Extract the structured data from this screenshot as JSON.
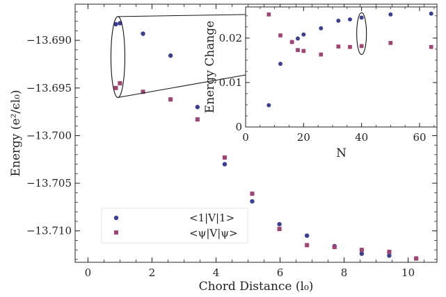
{
  "chart_data": [
    {
      "type": "scatter",
      "xlabel": "Chord Distance (l₀)",
      "ylabel": "Energy (e²/ϵl₀)",
      "xlim": [
        -0.4,
        10.9
      ],
      "ylim": [
        -13.7133,
        -13.6862
      ],
      "xticks": [
        0,
        2,
        4,
        6,
        8,
        10
      ],
      "xtick_labels": [
        "0",
        "2",
        "4",
        "6",
        "8",
        "10"
      ],
      "yticks": [
        -13.71,
        -13.705,
        -13.7,
        -13.695,
        -13.69
      ],
      "ytick_labels": [
        "−13.710",
        "−13.705",
        "−13.700",
        "−13.695",
        "−13.690"
      ],
      "legend_position": "bottom-left",
      "series": [
        {
          "name": "<1|V|1>",
          "color": "#3b3f94",
          "marker": "circle",
          "x": [
            0.87,
            1.0,
            1.72,
            2.58,
            3.42,
            4.27,
            5.13,
            5.98,
            6.84,
            7.7,
            8.55,
            9.41,
            10.25
          ],
          "y": [
            -13.6883,
            -13.6882,
            -13.6893,
            -13.6916,
            -13.697,
            -13.703,
            -13.7069,
            -13.7093,
            -13.7105,
            -13.7116,
            -13.7124,
            -13.7126,
            -13.7129
          ]
        },
        {
          "name": "<ψ|V|ψ>",
          "color": "#a04474",
          "marker": "square",
          "x": [
            0.87,
            1.0,
            1.72,
            2.58,
            3.42,
            4.27,
            5.13,
            5.98,
            6.84,
            7.7,
            8.55,
            9.41,
            10.25
          ],
          "y": [
            -13.695,
            -13.6945,
            -13.6954,
            -13.6962,
            -13.6983,
            -13.7023,
            -13.7061,
            -13.7098,
            -13.7115,
            -13.7117,
            -13.712,
            -13.7122,
            -13.7129
          ]
        }
      ]
    },
    {
      "type": "scatter",
      "xlabel": "N",
      "ylabel": "Energy Change",
      "xlim": [
        0,
        66
      ],
      "ylim": [
        0,
        0.027
      ],
      "xticks": [
        0,
        20,
        40,
        60
      ],
      "xtick_labels": [
        "0",
        "20",
        "40",
        "60"
      ],
      "yticks": [
        0,
        0.01,
        0.02
      ],
      "ytick_labels": [
        "0",
        "0.01",
        "0.02"
      ],
      "series": [
        {
          "color": "#3b3f94",
          "marker": "circle",
          "x": [
            8,
            12,
            16,
            18,
            20,
            26,
            32,
            36,
            40,
            50,
            64
          ],
          "y": [
            0.0049,
            0.0142,
            0.0191,
            0.0199,
            0.0208,
            0.0222,
            0.0239,
            0.0242,
            0.0246,
            0.0253,
            0.0255
          ]
        },
        {
          "color": "#a04474",
          "marker": "square",
          "x": [
            8,
            12,
            16,
            18,
            20,
            26,
            32,
            36,
            40,
            50,
            64
          ],
          "y": [
            0.0253,
            0.0206,
            0.0191,
            0.0173,
            0.0171,
            0.0163,
            0.0181,
            0.018,
            0.0182,
            0.0189,
            0.018
          ]
        }
      ]
    }
  ]
}
